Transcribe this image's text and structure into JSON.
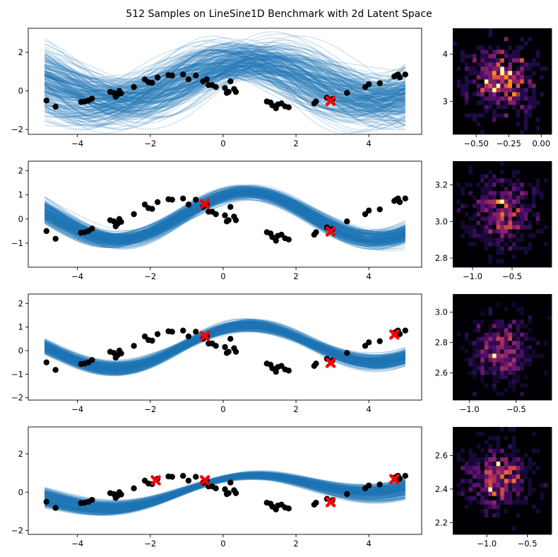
{
  "title": "512 Samples on LineSine1D Benchmark with 2d Latent Space",
  "colors": {
    "sample_line": "#1f77b4",
    "data_point": "#000000",
    "context_point": "#ff0000",
    "heatmap_cmap": "inferno"
  },
  "chart_data": [
    {
      "type": "line",
      "description_role": "function-samples",
      "n_samples": 512,
      "xlim": [
        -5.35,
        5.45
      ],
      "ylim": [
        -2.25,
        3.25
      ],
      "xticks": [
        -4,
        -2,
        0,
        2,
        4
      ],
      "yticks": [
        -2,
        0,
        2
      ],
      "xtick_labels": [
        "−4",
        "−2",
        "0",
        "2",
        "4"
      ],
      "ytick_labels": [
        "−2",
        "0",
        "2"
      ],
      "sample_band": {
        "amp": [
          0.45,
          2.0
        ],
        "offset": [
          0.1,
          0.9
        ],
        "phase": [
          -1.1,
          1.1
        ],
        "freq": [
          0.78,
          0.95
        ],
        "slope": [
          -0.15,
          0.15
        ]
      },
      "context_points": [
        [
          2.95,
          -0.52
        ]
      ]
    },
    {
      "type": "line",
      "description_role": "function-samples",
      "n_samples": 512,
      "xlim": [
        -5.35,
        5.45
      ],
      "ylim": [
        -2.0,
        2.4
      ],
      "xticks": [
        -4,
        -2,
        0,
        2,
        4
      ],
      "yticks": [
        -1,
        0,
        1,
        2
      ],
      "xtick_labels": [
        "−4",
        "−2",
        "0",
        "2",
        "4"
      ],
      "ytick_labels": [
        "−1",
        "0",
        "1",
        "2"
      ],
      "sample_band": {
        "amp": [
          0.8,
          1.2
        ],
        "offset": [
          0.0,
          0.25
        ],
        "phase": [
          -0.25,
          0.25
        ],
        "freq": [
          0.85,
          0.92
        ],
        "slope": [
          -0.05,
          0.05
        ]
      },
      "context_points": [
        [
          -0.5,
          0.62
        ],
        [
          2.95,
          -0.52
        ]
      ]
    },
    {
      "type": "line",
      "description_role": "function-samples",
      "n_samples": 512,
      "xlim": [
        -5.35,
        5.45
      ],
      "ylim": [
        -2.1,
        2.4
      ],
      "xticks": [
        -4,
        -2,
        0,
        2,
        4
      ],
      "yticks": [
        -2,
        -1,
        0,
        1,
        2
      ],
      "xtick_labels": [
        "−4",
        "−2",
        "0",
        "2",
        "4"
      ],
      "ytick_labels": [
        "−2",
        "−1",
        "0",
        "1",
        "2"
      ],
      "sample_band": {
        "amp": [
          0.65,
          1.05
        ],
        "offset": [
          0.1,
          0.3
        ],
        "phase": [
          -0.15,
          0.15
        ],
        "freq": [
          0.86,
          0.9
        ],
        "slope": [
          0.0,
          0.08
        ]
      },
      "context_points": [
        [
          -0.5,
          0.62
        ],
        [
          2.95,
          -0.52
        ],
        [
          4.7,
          0.68
        ]
      ]
    },
    {
      "type": "line",
      "description_role": "function-samples",
      "n_samples": 512,
      "xlim": [
        -5.35,
        5.45
      ],
      "ylim": [
        -2.2,
        3.4
      ],
      "xticks": [
        -4,
        -2,
        0,
        2,
        4
      ],
      "yticks": [
        -2,
        0,
        2
      ],
      "xtick_labels": [
        "−4",
        "−2",
        "0",
        "2",
        "4"
      ],
      "ytick_labels": [
        "−2",
        "0",
        "2"
      ],
      "sample_band": {
        "amp": [
          0.55,
          0.75
        ],
        "offset": [
          0.05,
          0.25
        ],
        "phase": [
          -0.1,
          0.1
        ],
        "freq": [
          0.86,
          0.9
        ],
        "slope": [
          0.02,
          0.2
        ]
      },
      "context_points": [
        [
          -1.85,
          0.62
        ],
        [
          -0.5,
          0.62
        ],
        [
          2.95,
          -0.52
        ],
        [
          4.7,
          0.68
        ]
      ]
    }
  ],
  "data_points": [
    [
      -4.85,
      -0.5
    ],
    [
      -4.6,
      -0.82
    ],
    [
      -3.9,
      -0.57
    ],
    [
      -3.8,
      -0.55
    ],
    [
      -3.7,
      -0.5
    ],
    [
      -3.6,
      -0.4
    ],
    [
      -3.1,
      -0.05
    ],
    [
      -3.0,
      -0.1
    ],
    [
      -2.95,
      -0.3
    ],
    [
      -2.9,
      -0.2
    ],
    [
      -2.85,
      0.0
    ],
    [
      -2.8,
      -0.12
    ],
    [
      -2.45,
      0.2
    ],
    [
      -2.15,
      0.6
    ],
    [
      -2.05,
      0.45
    ],
    [
      -1.95,
      0.42
    ],
    [
      -1.8,
      0.7
    ],
    [
      -1.5,
      0.82
    ],
    [
      -1.4,
      0.8
    ],
    [
      -1.1,
      0.85
    ],
    [
      -0.95,
      0.6
    ],
    [
      -0.75,
      0.8
    ],
    [
      -0.55,
      0.5
    ],
    [
      -0.45,
      0.6
    ],
    [
      -0.4,
      0.3
    ],
    [
      -0.3,
      0.3
    ],
    [
      -0.2,
      0.2
    ],
    [
      0.05,
      0.15
    ],
    [
      0.1,
      -0.1
    ],
    [
      0.15,
      -0.05
    ],
    [
      0.2,
      0.5
    ],
    [
      0.3,
      0.1
    ],
    [
      0.35,
      -0.05
    ],
    [
      1.2,
      -0.55
    ],
    [
      1.3,
      -0.6
    ],
    [
      1.35,
      -0.75
    ],
    [
      1.45,
      -0.9
    ],
    [
      1.5,
      -0.7
    ],
    [
      1.6,
      -0.65
    ],
    [
      1.7,
      -0.8
    ],
    [
      1.8,
      -0.85
    ],
    [
      2.5,
      -0.65
    ],
    [
      2.55,
      -0.55
    ],
    [
      2.85,
      -0.35
    ],
    [
      3.0,
      -0.42
    ],
    [
      3.4,
      -0.1
    ],
    [
      3.9,
      0.2
    ],
    [
      4.0,
      0.35
    ],
    [
      4.3,
      0.4
    ],
    [
      4.7,
      0.75
    ],
    [
      4.75,
      0.8
    ],
    [
      4.8,
      0.85
    ],
    [
      4.85,
      0.7
    ],
    [
      5.0,
      0.85
    ]
  ],
  "latent_heatmaps": [
    {
      "type": "heatmap",
      "xlim": [
        -0.68,
        0.08
      ],
      "ylim": [
        2.3,
        4.55
      ],
      "xticks": [
        -0.5,
        -0.25,
        0.0
      ],
      "yticks": [
        3,
        4
      ],
      "xtick_labels": [
        "−0.50",
        "−0.25",
        "0.00"
      ],
      "ytick_labels": [
        "3",
        "4"
      ],
      "center": [
        -0.3,
        3.45
      ],
      "spread": [
        0.14,
        0.42
      ],
      "bins": 25
    },
    {
      "type": "heatmap",
      "xlim": [
        -1.25,
        -0.0
      ],
      "ylim": [
        2.75,
        3.33
      ],
      "xticks": [
        -1.0,
        -0.5
      ],
      "yticks": [
        2.8,
        3.0,
        3.2
      ],
      "xtick_labels": [
        "−1.0",
        "−0.5"
      ],
      "ytick_labels": [
        "2.8",
        "3.0",
        "3.2"
      ],
      "center": [
        -0.62,
        3.05
      ],
      "spread": [
        0.22,
        0.1
      ],
      "bins": 25
    },
    {
      "type": "heatmap",
      "xlim": [
        -1.18,
        -0.12
      ],
      "ylim": [
        2.42,
        3.12
      ],
      "xticks": [
        -1.0,
        -0.5
      ],
      "yticks": [
        2.6,
        2.8,
        3.0
      ],
      "xtick_labels": [
        "−1.0",
        "−0.5"
      ],
      "ytick_labels": [
        "2.6",
        "2.8",
        "3.0"
      ],
      "center": [
        -0.66,
        2.75
      ],
      "spread": [
        0.17,
        0.11
      ],
      "bins": 25
    },
    {
      "type": "heatmap",
      "xlim": [
        -1.42,
        -0.2
      ],
      "ylim": [
        2.13,
        2.77
      ],
      "xticks": [
        -1.0,
        -0.5
      ],
      "yticks": [
        2.2,
        2.4,
        2.6
      ],
      "xtick_labels": [
        "−1.0",
        "−0.5"
      ],
      "ytick_labels": [
        "2.2",
        "2.4",
        "2.6"
      ],
      "center": [
        -0.86,
        2.46
      ],
      "spread": [
        0.2,
        0.1
      ],
      "bins": 25
    }
  ]
}
